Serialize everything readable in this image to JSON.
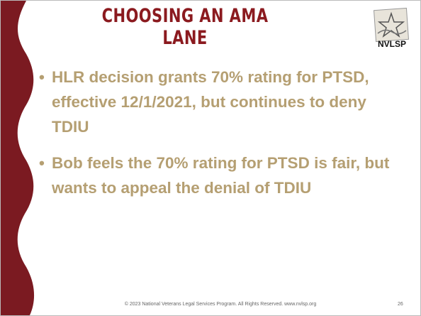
{
  "slide": {
    "title": "CHOOSING AN AMA LANE",
    "logo_text": "NVLSP",
    "bullets": [
      "HLR decision grants 70% rating for PTSD, effective 12/1/2021, but continues to deny TDIU",
      "Bob feels the 70% rating for PTSD is fair, but wants to appeal the denial of TDIU"
    ],
    "footer": "© 2023 National Veterans Legal Services Program. All Rights Reserved.  www.nvlsp.org",
    "page_number": "26"
  }
}
